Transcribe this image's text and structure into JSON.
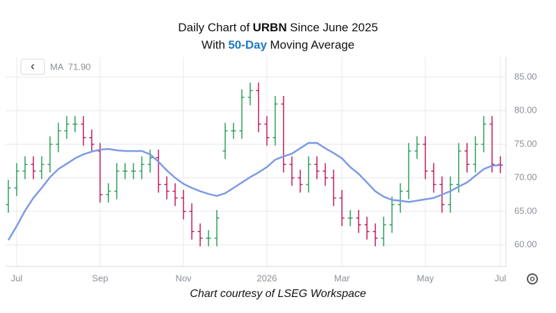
{
  "chart_data": {
    "type": "ohlc",
    "title_parts": [
      "Daily Chart of",
      "URBN",
      "Since June 2025"
    ],
    "subtitle_parts": [
      "With",
      "50-Day",
      "Moving Average"
    ],
    "caption": "Chart courtesy of LSEG Workspace",
    "back_button": "‹",
    "categories": [
      null,
      "Jul",
      null,
      null,
      null,
      null,
      null,
      null,
      null,
      null,
      null,
      "Sep",
      null,
      null,
      null,
      null,
      null,
      null,
      null,
      null,
      null,
      "Nov",
      null,
      null,
      null,
      null,
      null,
      null,
      null,
      null,
      null,
      "2026",
      null,
      null,
      null,
      null,
      null,
      null,
      null,
      null,
      "Mar",
      null,
      null,
      null,
      null,
      null,
      null,
      null,
      null,
      null,
      "May",
      null,
      null,
      null,
      null,
      null,
      null,
      null,
      null,
      "Jul"
    ],
    "open": [
      66,
      68.5,
      71,
      72,
      71,
      72,
      75,
      77,
      78,
      78,
      76,
      74,
      67.5,
      68,
      71,
      71,
      71,
      72,
      73,
      69,
      68,
      67,
      65,
      62,
      61,
      61,
      74,
      77,
      77,
      82,
      83,
      78,
      76,
      81,
      72,
      70,
      69,
      72,
      71,
      70,
      67,
      64,
      64,
      63,
      62,
      61,
      63,
      66,
      68,
      74,
      75,
      71,
      69,
      66,
      69,
      74,
      72,
      75,
      78,
      72
    ],
    "high": [
      69.7,
      72.2,
      73.2,
      73.2,
      73.2,
      76.2,
      78.2,
      79.2,
      79.2,
      79.2,
      77.2,
      75.2,
      69.2,
      72.2,
      72.2,
      72.2,
      73.2,
      74.2,
      74.2,
      70.2,
      69.2,
      68.2,
      66.2,
      63.2,
      62.2,
      65.2,
      78.2,
      78.2,
      83.2,
      84.2,
      84.2,
      79.2,
      82.2,
      82.2,
      73.2,
      71.2,
      73.2,
      73.2,
      72.2,
      71.2,
      68.2,
      65.2,
      65.2,
      64.2,
      63.2,
      64.2,
      67.2,
      69.2,
      75.2,
      76.2,
      76.2,
      72.2,
      70.2,
      70.2,
      75.2,
      75.2,
      76.2,
      79.2,
      79.2,
      73.2
    ],
    "low": [
      64.8,
      67.3,
      69.8,
      69.8,
      69.8,
      70.8,
      73.8,
      75.8,
      76.8,
      74.8,
      73.8,
      66.3,
      66.3,
      66.8,
      69.8,
      69.8,
      69.8,
      70.8,
      67.8,
      66.8,
      65.8,
      63.8,
      60.8,
      59.8,
      59.8,
      59.8,
      72.8,
      75.8,
      75.8,
      80.8,
      76.8,
      74.8,
      74.8,
      70.8,
      68.8,
      67.8,
      67.8,
      69.8,
      68.8,
      65.8,
      62.8,
      62.8,
      61.8,
      60.8,
      59.8,
      59.8,
      61.8,
      64.8,
      66.8,
      72.8,
      69.8,
      67.8,
      64.8,
      64.8,
      67.8,
      70.8,
      70.8,
      73.8,
      70.8,
      70.7
    ],
    "close": [
      68.5,
      71,
      72,
      71,
      72,
      75,
      77,
      78,
      78,
      76,
      75,
      67.5,
      68,
      71,
      71,
      71,
      72,
      73,
      69,
      68,
      67,
      65,
      62,
      61,
      61,
      64,
      77,
      77,
      82,
      83,
      78,
      76,
      81,
      72,
      70,
      69,
      72,
      71,
      70,
      67,
      64,
      64,
      63,
      62,
      61,
      63,
      66,
      68,
      74,
      75,
      71,
      69,
      66,
      69,
      74,
      72,
      75,
      78,
      72,
      71.9
    ],
    "up_color": "#2e9e5b",
    "down_color": "#c2185b",
    "series": [
      {
        "name": "MA",
        "color": "#7b9ae6",
        "legend_value": "71.90",
        "values": [
          60.7,
          62.8,
          65.1,
          67,
          68.5,
          70.1,
          71.3,
          72.1,
          72.9,
          73.5,
          73.9,
          74.2,
          74.3,
          74.1,
          74,
          74,
          74,
          73.5,
          72.4,
          71.1,
          70,
          69.1,
          68.5,
          68,
          67.6,
          67.3,
          67.7,
          68.5,
          69.3,
          70.1,
          70.8,
          71.6,
          72.7,
          73.2,
          73.6,
          74.4,
          75.2,
          75.2,
          74.4,
          73.7,
          72.9,
          71.6,
          70.6,
          69.3,
          68,
          67.2,
          66.7,
          66.6,
          66.4,
          66.6,
          66.8,
          67,
          67.5,
          68,
          68.7,
          69.3,
          70.3,
          71.3,
          71.8,
          71.9
        ]
      }
    ],
    "ylim": [
      56.8,
      88
    ],
    "yticks": [
      {
        "value": 60,
        "label": "60.00"
      },
      {
        "value": 65,
        "label": "65.00"
      },
      {
        "value": 70,
        "label": "70.00"
      },
      {
        "value": 75,
        "label": "75.00"
      },
      {
        "value": 80,
        "label": "80.00"
      },
      {
        "value": 85,
        "label": "85.00"
      }
    ],
    "grid": true
  }
}
